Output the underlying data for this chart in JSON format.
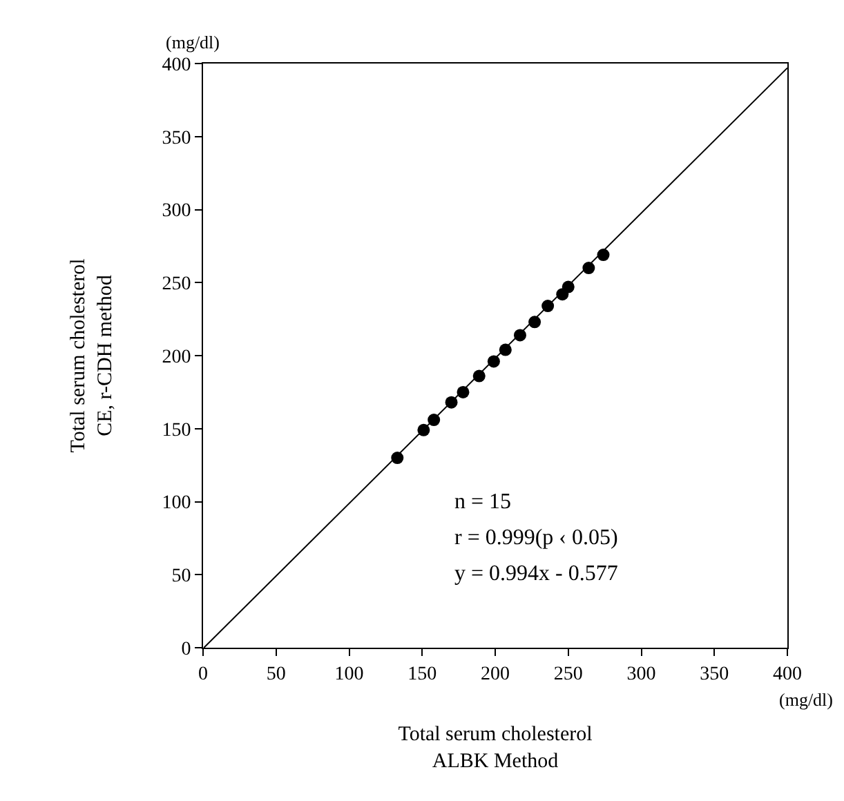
{
  "chart_data": {
    "type": "scatter",
    "xlabel": "Total serum cholesterol\nALBK Method",
    "ylabel": "Total serum cholesterol\nCE, r-CDH method",
    "series": [
      {
        "type": "scatter",
        "color": "#000000",
        "marker": "circle",
        "x": [
          133,
          151,
          158,
          170,
          178,
          189,
          199,
          207,
          217,
          227,
          236,
          246,
          250,
          264,
          274
        ],
        "values": [
          130,
          149,
          156,
          168,
          175,
          186,
          196,
          204,
          214,
          223,
          234,
          242,
          247,
          260,
          269
        ]
      },
      {
        "type": "line",
        "color": "#000000",
        "marker": "none",
        "line_style": "solid",
        "x": [
          0.6,
          400
        ],
        "values": [
          0,
          397
        ]
      }
    ],
    "xlim": [
      0,
      400
    ],
    "xticks": [
      0,
      50,
      100,
      150,
      200,
      250,
      300,
      350,
      400
    ],
    "ylim": [
      0,
      400
    ],
    "yticks": [
      0,
      50,
      100,
      150,
      200,
      250,
      300,
      350,
      400
    ],
    "grid": false,
    "annotations": [
      "(mg/dl)",
      "(mg/dl)",
      "n = 15",
      "r = 0.999(p ‹ 0.05)",
      "y = 0.994x - 0.577"
    ]
  }
}
